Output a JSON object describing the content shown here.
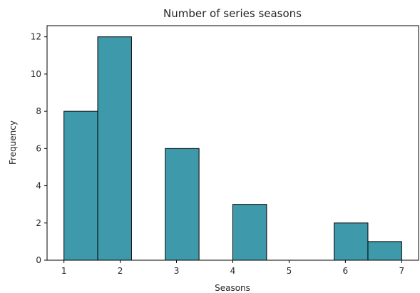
{
  "chart_data": {
    "type": "bar",
    "title": "Number of series seasons",
    "xlabel": "Seasons",
    "ylabel": "Frequency",
    "bins": [
      {
        "start": 1.0,
        "end": 1.6,
        "count": 8
      },
      {
        "start": 1.6,
        "end": 2.2,
        "count": 12
      },
      {
        "start": 2.2,
        "end": 2.8,
        "count": 0
      },
      {
        "start": 2.8,
        "end": 3.4,
        "count": 6
      },
      {
        "start": 3.4,
        "end": 4.0,
        "count": 0
      },
      {
        "start": 4.0,
        "end": 4.6,
        "count": 3
      },
      {
        "start": 4.6,
        "end": 5.2,
        "count": 0
      },
      {
        "start": 5.2,
        "end": 5.8,
        "count": 0
      },
      {
        "start": 5.8,
        "end": 6.4,
        "count": 2
      },
      {
        "start": 6.4,
        "end": 7.0,
        "count": 1
      }
    ],
    "xlim": [
      0.7,
      7.3
    ],
    "ylim": [
      0,
      12.6
    ],
    "xticks": [
      1,
      2,
      3,
      4,
      5,
      6,
      7
    ],
    "yticks": [
      0,
      2,
      4,
      6,
      8,
      10,
      12
    ],
    "bar_color": "#3e9aab",
    "edge_color": "#000000",
    "grid": false,
    "legend": "none"
  }
}
